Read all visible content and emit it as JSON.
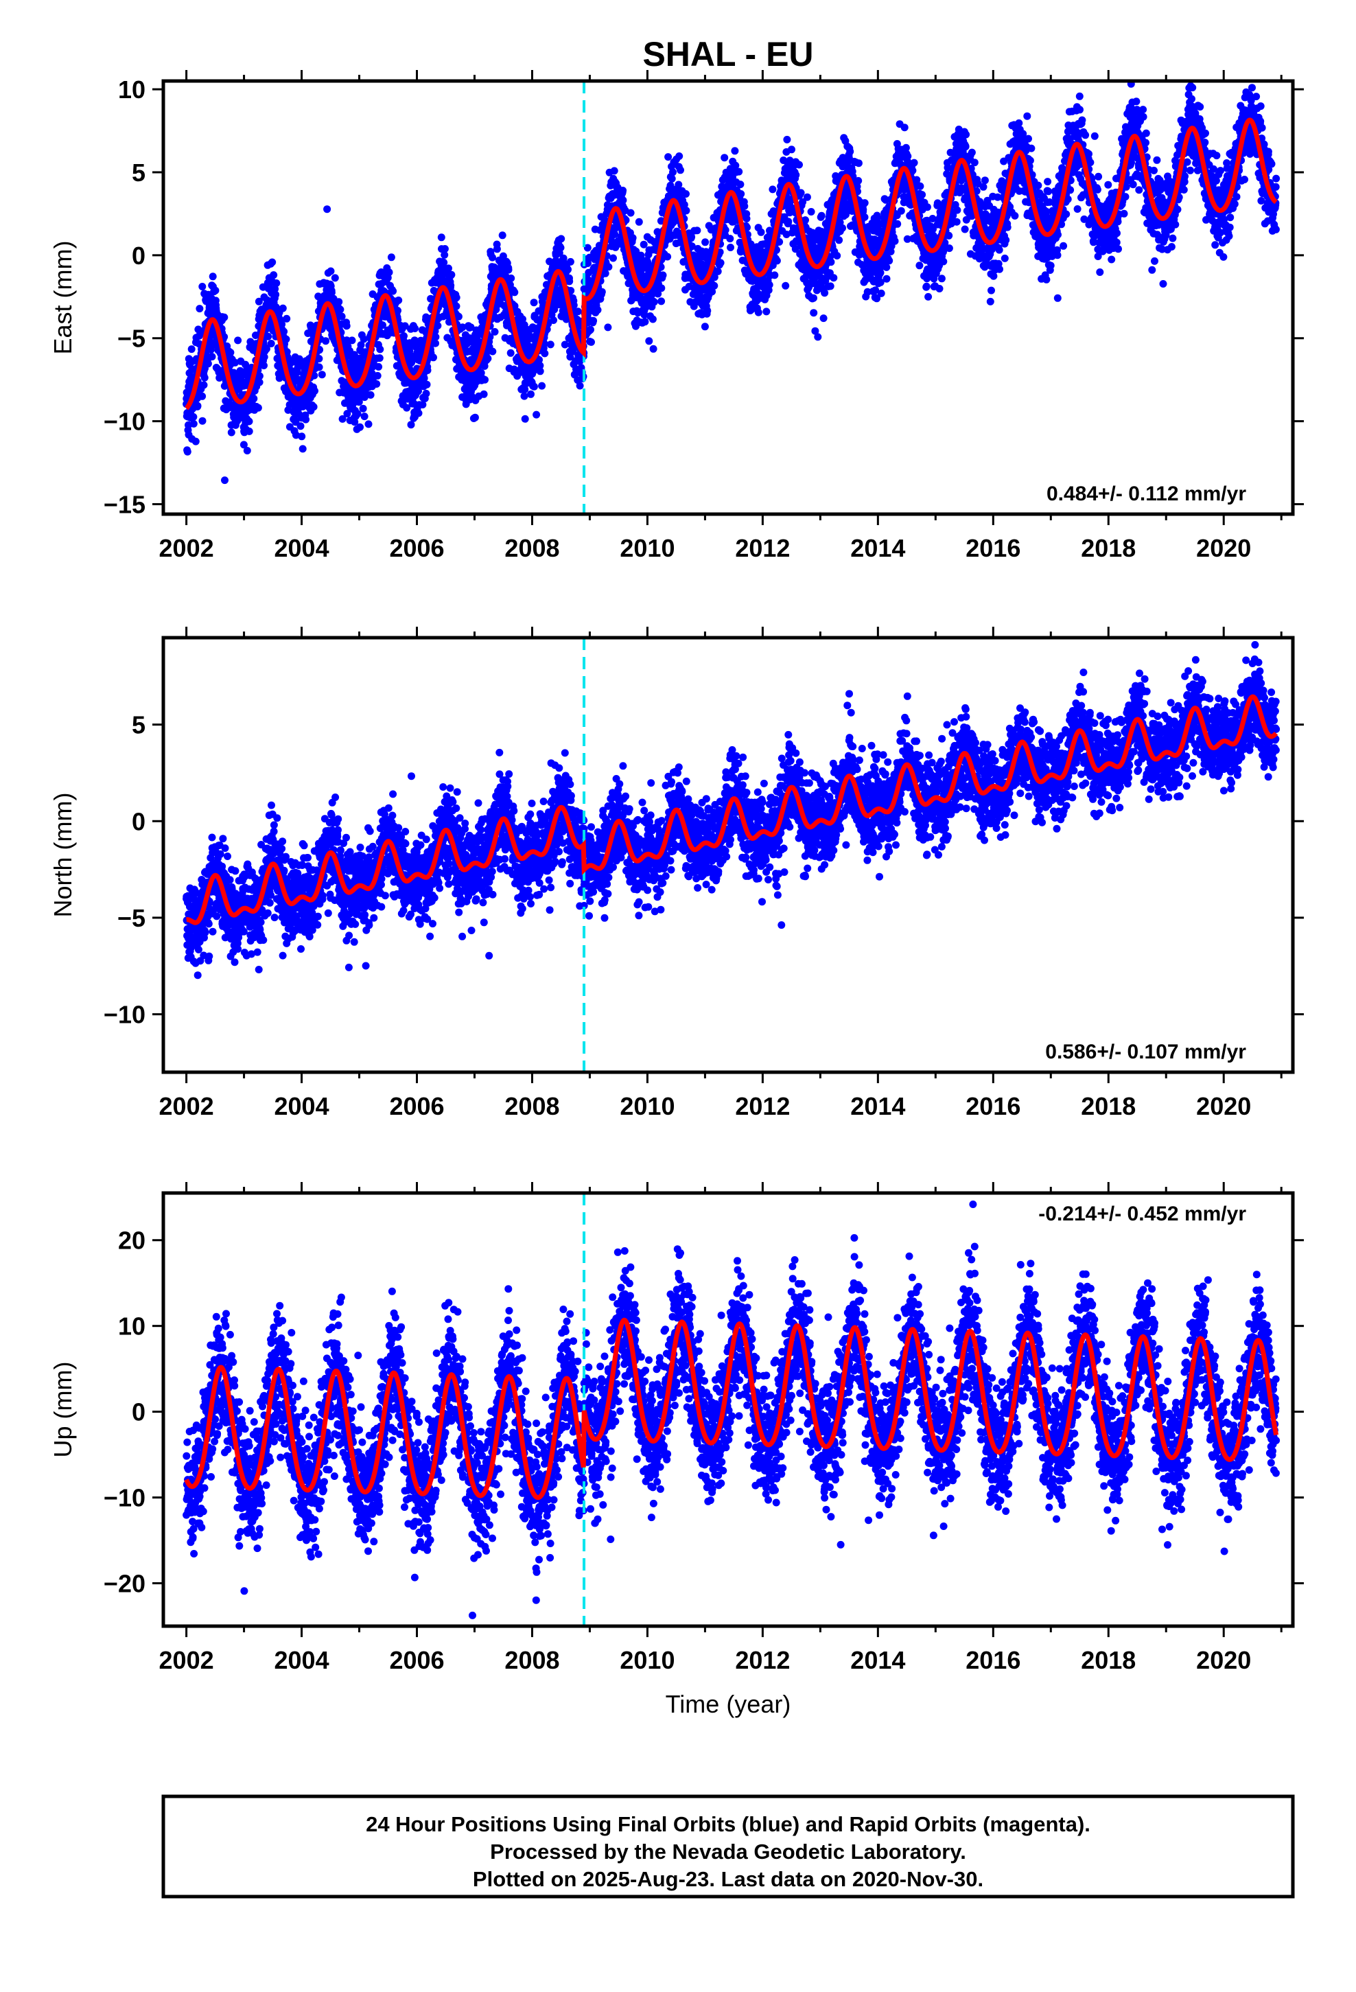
{
  "title": "SHAL - EU",
  "x_axis_label": "Time (year)",
  "footer": {
    "line1": "24 Hour Positions Using Final Orbits (blue) and Rapid Orbits (magenta).",
    "line2": "Processed by the Nevada Geodetic Laboratory.",
    "line3": "Plotted on 2025-Aug-23. Last data on 2020-Nov-30."
  },
  "colors": {
    "points": "#0000ff",
    "model": "#ff0000",
    "offset_line": "#00e5ee",
    "frame": "#000000"
  },
  "chart_data": [
    {
      "type": "scatter",
      "ylabel": "East (mm)",
      "rate_label": "0.484+/- 0.112 mm/yr",
      "xlim": [
        2001.6,
        2021.2
      ],
      "ylim": [
        -15.6,
        10.5
      ],
      "x_ticks": [
        2002,
        2004,
        2006,
        2008,
        2010,
        2012,
        2014,
        2016,
        2018,
        2020
      ],
      "y_ticks": [
        -15,
        -10,
        -5,
        0,
        5,
        10
      ],
      "offset_epoch": 2008.9,
      "data_start": 2002.0,
      "data_end": 2020.91,
      "model": {
        "annual_amplitude": 2.6,
        "annual_peak_phase": 0.45,
        "semiannual_amplitude": 0.3,
        "trend_before": 0.484,
        "intercept_before_2002": -7.0,
        "intercept_after_2009": -0.3,
        "trend_after": 0.484,
        "noise_sd": 1.2,
        "point_count": 6500
      },
      "legend": "none",
      "grid": false
    },
    {
      "type": "scatter",
      "ylabel": "North (mm)",
      "rate_label": "0.586+/- 0.107 mm/yr",
      "xlim": [
        2001.6,
        2021.2
      ],
      "ylim": [
        -13.0,
        9.5
      ],
      "x_ticks": [
        2002,
        2004,
        2006,
        2008,
        2010,
        2012,
        2014,
        2016,
        2018,
        2020
      ],
      "y_ticks": [
        -10,
        -5,
        0,
        5
      ],
      "offset_epoch": 2008.9,
      "data_start": 2002.0,
      "data_end": 2020.91,
      "model": {
        "annual_amplitude": 1.0,
        "annual_peak_phase": 0.5,
        "semiannual_amplitude": 0.5,
        "trend_before": 0.586,
        "intercept_before_2002": -4.6,
        "intercept_after_2009": -1.8,
        "trend_after": 0.586,
        "noise_sd": 1.1,
        "point_count": 6500
      },
      "legend": "none",
      "grid": false
    },
    {
      "type": "scatter",
      "ylabel": "Up (mm)",
      "rate_label": "-0.214+/- 0.452 mm/yr",
      "xlim": [
        2001.6,
        2021.2
      ],
      "ylim": [
        -25.0,
        25.5
      ],
      "x_ticks": [
        2002,
        2004,
        2006,
        2008,
        2010,
        2012,
        2014,
        2016,
        2018,
        2020
      ],
      "y_ticks": [
        -20,
        -10,
        0,
        10,
        20
      ],
      "offset_epoch": 2008.9,
      "data_start": 2002.0,
      "data_end": 2020.91,
      "model": {
        "annual_amplitude": 7.0,
        "annual_peak_phase": 0.6,
        "semiannual_amplitude": 0.8,
        "trend_before": -0.214,
        "intercept_before_2002": -2.5,
        "intercept_after_2009": 3.0,
        "trend_after": -0.214,
        "noise_sd": 3.6,
        "point_count": 6500
      },
      "legend": "none",
      "grid": false
    }
  ]
}
